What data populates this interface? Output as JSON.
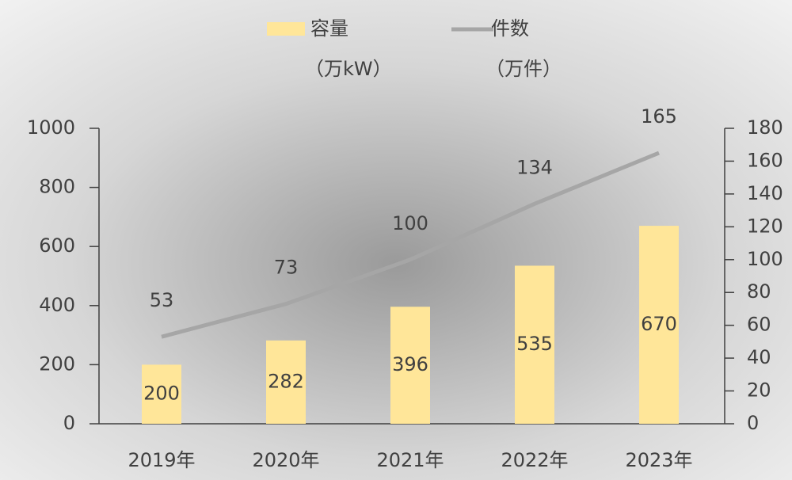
{
  "chart_data": {
    "type": "bar_line",
    "categories": [
      "2019年",
      "2020年",
      "2021年",
      "2022年",
      "2023年"
    ],
    "series": [
      {
        "name": "容量",
        "unit": "（万kW）",
        "color": "#ffe699",
        "values": [
          200,
          282,
          396,
          535,
          670
        ]
      },
      {
        "name": "件数",
        "unit": "（万件）",
        "color": "#a6a6a6",
        "axis": "y2",
        "values": [
          53,
          73,
          100,
          134,
          165
        ]
      }
    ],
    "ylim": [
      0,
      1000
    ],
    "yticks": [
      0,
      200,
      400,
      600,
      800,
      1000
    ],
    "y2lim": [
      0,
      180
    ],
    "y2ticks": [
      0,
      20,
      40,
      60,
      80,
      100,
      120,
      140,
      160,
      180
    ]
  }
}
